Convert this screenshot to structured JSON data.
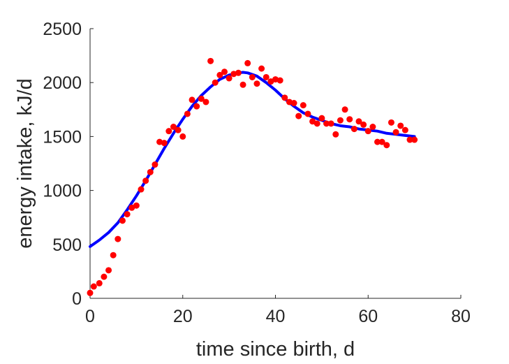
{
  "chart_data": {
    "type": "scatter",
    "title": "",
    "xlabel": "time since birth, d",
    "ylabel": "energy intake, kJ/d",
    "xlim": [
      0,
      80
    ],
    "ylim": [
      0,
      2500
    ],
    "xticks": [
      0,
      20,
      40,
      60,
      80
    ],
    "xtick_labels": [
      "0",
      "20",
      "40",
      "60",
      "80"
    ],
    "yticks": [
      0,
      500,
      1000,
      1500,
      2000,
      2500
    ],
    "ytick_labels": [
      "0",
      "500",
      "1000",
      "1500",
      "2000",
      "2500"
    ],
    "grid": false,
    "series": [
      {
        "kind": "scatter",
        "color": "#ff0000",
        "x": [
          0,
          0.8,
          2,
          3,
          4,
          5,
          6,
          7,
          8,
          9,
          10,
          11,
          12,
          13,
          14,
          15,
          16,
          17,
          18,
          19,
          20,
          21,
          22,
          23,
          24,
          25,
          26,
          27,
          28,
          29,
          30,
          31,
          32,
          33,
          34,
          35,
          36,
          37,
          38,
          39,
          40,
          41,
          42,
          43,
          44,
          45,
          46,
          47,
          48,
          49,
          50,
          51,
          52,
          53,
          54,
          55,
          56,
          57,
          58,
          59,
          60,
          61,
          62,
          63,
          64,
          65,
          66,
          67,
          68,
          69,
          70
        ],
        "y": [
          50,
          110,
          140,
          200,
          260,
          400,
          550,
          720,
          780,
          840,
          860,
          1010,
          1090,
          1170,
          1240,
          1450,
          1440,
          1550,
          1590,
          1560,
          1500,
          1710,
          1840,
          1780,
          1850,
          1820,
          2200,
          2000,
          2070,
          2100,
          2040,
          2080,
          2090,
          1980,
          2180,
          2050,
          1990,
          2130,
          2050,
          2010,
          2030,
          2020,
          1860,
          1820,
          1810,
          1690,
          1790,
          1710,
          1640,
          1620,
          1670,
          1620,
          1620,
          1520,
          1650,
          1750,
          1660,
          1570,
          1640,
          1610,
          1550,
          1590,
          1450,
          1450,
          1420,
          1630,
          1540,
          1600,
          1560,
          1470,
          1470
        ]
      },
      {
        "kind": "line",
        "color": "#0000ff",
        "x": [
          0,
          2,
          4,
          6,
          8,
          10,
          12,
          14,
          16,
          18,
          20,
          22,
          24,
          26,
          28,
          30,
          32,
          33,
          34,
          36,
          38,
          40,
          42,
          44,
          46,
          48,
          50,
          52,
          54,
          56,
          58,
          60,
          62,
          64,
          66,
          68,
          70
        ],
        "y": [
          480,
          540,
          610,
          700,
          820,
          950,
          1090,
          1240,
          1390,
          1530,
          1660,
          1780,
          1880,
          1960,
          2030,
          2070,
          2090,
          2095,
          2090,
          2060,
          2000,
          1930,
          1850,
          1780,
          1720,
          1680,
          1650,
          1620,
          1600,
          1590,
          1570,
          1560,
          1550,
          1530,
          1520,
          1510,
          1500
        ]
      }
    ]
  }
}
